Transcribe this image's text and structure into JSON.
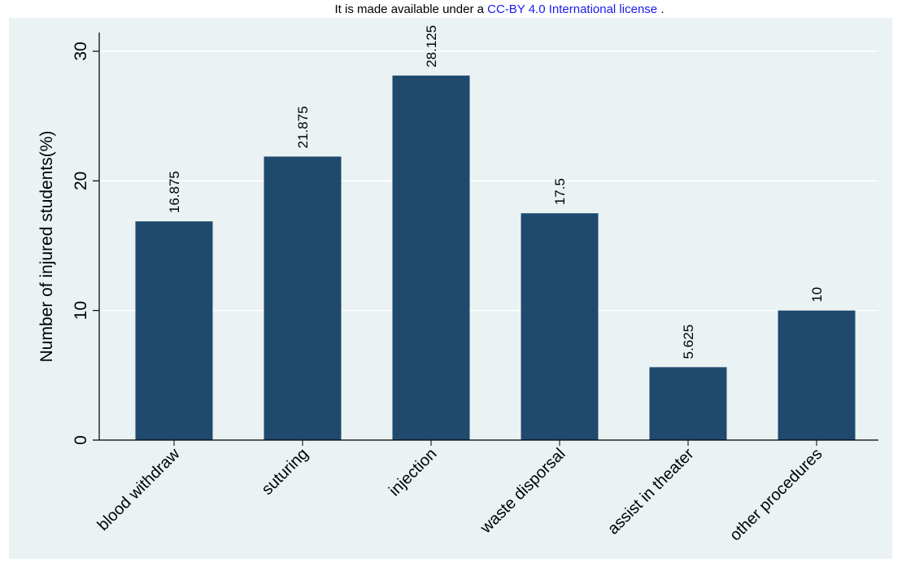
{
  "header": {
    "license_prefix": "It is made available under a",
    "license_link": "CC-BY 4.0 International license",
    "license_suffix": "."
  },
  "colors": {
    "bar": "#1f4a6e",
    "panel_background": "#eaf2f3",
    "grid": "#ffffff",
    "link": "#1a1aee"
  },
  "chart_data": {
    "type": "bar",
    "title": "",
    "xlabel": "",
    "ylabel": "Number of injured students(%)",
    "categories": [
      "blood withdraw",
      "suturing",
      "injection",
      "waste disporsal",
      "assist in theater",
      "other procedures"
    ],
    "values": [
      16.875,
      21.875,
      28.125,
      17.5,
      5.625,
      10
    ],
    "value_labels": [
      "16.875",
      "21.875",
      "28.125",
      "17.5",
      "5.625",
      "10"
    ],
    "ylim": [
      0,
      30
    ],
    "yticks": [
      0,
      10,
      20,
      30
    ],
    "ytick_labels": [
      "0",
      "10",
      "20",
      "30"
    ],
    "grid": true,
    "legend": "none"
  }
}
